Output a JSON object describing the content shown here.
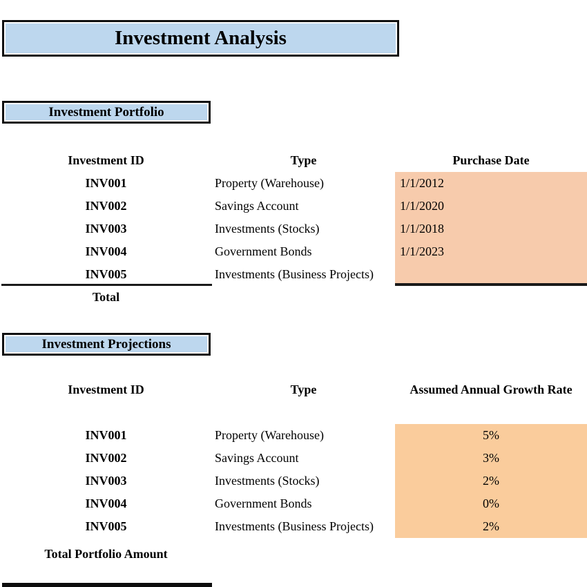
{
  "title": "Investment Analysis",
  "colors": {
    "box_fill": "#BDD7EE",
    "box_border": "#111111",
    "portfolio_highlight": "#F7CBAC",
    "projections_highlight": "#FACC9C",
    "text": "#000000"
  },
  "portfolio": {
    "section_label": "Investment Portfolio",
    "columns": [
      "Investment ID",
      "Type",
      "Purchase Date"
    ],
    "rows": [
      {
        "id": "INV001",
        "type": "Property (Warehouse)",
        "date": "1/1/2012"
      },
      {
        "id": "INV002",
        "type": "Savings Account",
        "date": "1/1/2020"
      },
      {
        "id": "INV003",
        "type": "Investments (Stocks)",
        "date": "1/1/2018"
      },
      {
        "id": "INV004",
        "type": "Government Bonds",
        "date": "1/1/2023"
      },
      {
        "id": "INV005",
        "type": "Investments (Business Projects)",
        "date": ""
      }
    ],
    "total_label": "Total"
  },
  "projections": {
    "section_label": "Investment Projections",
    "columns": [
      "Investment ID",
      "Type",
      "Assumed Annual Growth Rate"
    ],
    "rows": [
      {
        "id": "INV001",
        "type": "Property (Warehouse)",
        "rate": "5%"
      },
      {
        "id": "INV002",
        "type": "Savings Account",
        "rate": "3%"
      },
      {
        "id": "INV003",
        "type": "Investments (Stocks)",
        "rate": "2%"
      },
      {
        "id": "INV004",
        "type": "Government Bonds",
        "rate": "0%"
      },
      {
        "id": "INV005",
        "type": "Investments (Business Projects)",
        "rate": "2%"
      }
    ],
    "total_label": "Total Portfolio Amount"
  }
}
